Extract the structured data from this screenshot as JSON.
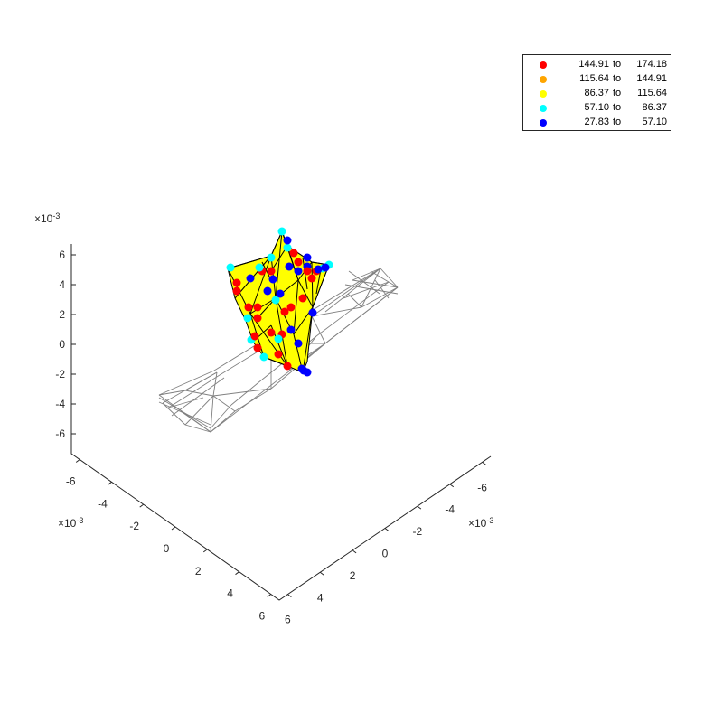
{
  "chart_data": {
    "type": "scatter",
    "subtype": "3d-mesh-with-colored-points",
    "view": "3-D perspective",
    "axes": {
      "z": {
        "ticks": [
          "6",
          "4",
          "2",
          "0",
          "-2",
          "-4",
          "-6"
        ],
        "exponent_label": "×10",
        "exponent": "-3"
      },
      "y": {
        "ticks": [
          "-6",
          "-4",
          "-2",
          "0",
          "2",
          "4",
          "6"
        ],
        "exponent_label": "×10",
        "exponent": "-3"
      },
      "x": {
        "ticks": [
          "-6",
          "-4",
          "-2",
          "0",
          "2",
          "4",
          "6"
        ],
        "exponent_label": "×10",
        "exponent": "-3"
      }
    },
    "legend": {
      "placement": "top-right",
      "entries": [
        {
          "low": "144.91",
          "sep": "to",
          "high": "174.18",
          "color": "#ff0000"
        },
        {
          "low": "115.64",
          "sep": "to",
          "high": "144.91",
          "color": "#ffa500"
        },
        {
          "low": "86.37",
          "sep": "to",
          "high": "115.64",
          "color": "#ffff00"
        },
        {
          "low": "57.10",
          "sep": "to",
          "high": "86.37",
          "color": "#00ffff"
        },
        {
          "low": "27.83",
          "sep": "to",
          "high": "57.10",
          "color": "#0000ff"
        }
      ]
    },
    "colors": {
      "surface": "#ffff00",
      "wireframe": "#808080",
      "mesh_edges": "#000000",
      "axis": "#262626"
    }
  }
}
